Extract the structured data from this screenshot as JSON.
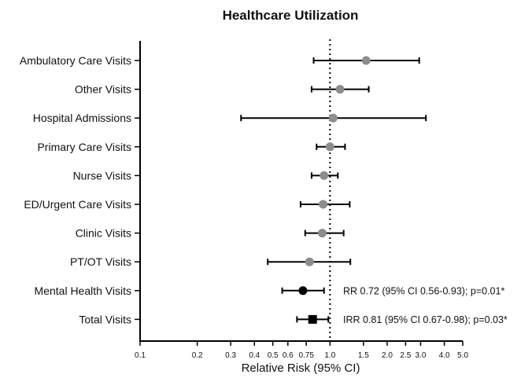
{
  "chart_data": {
    "type": "forest",
    "title": "Healthcare Utilization",
    "xlabel": "Relative Risk (95% CI)",
    "x_scale": "log",
    "xlim": [
      0.1,
      5.0
    ],
    "reference_line": 1.0,
    "x_ticks": [
      "0.1",
      "0.2",
      "0.3",
      "0.4",
      "0.5",
      "0.6",
      "0.75",
      "1.0",
      "1.5",
      "2.0",
      "2.5",
      "3.0",
      "4.0",
      "5.0"
    ],
    "colors": {
      "gray_marker": "#8c8c8c",
      "black_marker": "#000000",
      "line": "#000000"
    },
    "rows": [
      {
        "label": "Ambulatory Care Visits",
        "estimate": 1.55,
        "lower": 0.82,
        "upper": 2.95,
        "marker": "circle",
        "color": "#8c8c8c",
        "annotation": ""
      },
      {
        "label": "Other Visits",
        "estimate": 1.13,
        "lower": 0.8,
        "upper": 1.6,
        "marker": "circle",
        "color": "#8c8c8c",
        "annotation": ""
      },
      {
        "label": "Hospital Admissions",
        "estimate": 1.04,
        "lower": 0.34,
        "upper": 3.2,
        "marker": "circle",
        "color": "#8c8c8c",
        "annotation": ""
      },
      {
        "label": "Primary Care Visits",
        "estimate": 1.0,
        "lower": 0.85,
        "upper": 1.2,
        "marker": "circle",
        "color": "#8c8c8c",
        "annotation": ""
      },
      {
        "label": "Nurse Visits",
        "estimate": 0.93,
        "lower": 0.8,
        "upper": 1.1,
        "marker": "circle",
        "color": "#8c8c8c",
        "annotation": ""
      },
      {
        "label": "ED/Urgent Care Visits",
        "estimate": 0.92,
        "lower": 0.7,
        "upper": 1.27,
        "marker": "circle",
        "color": "#8c8c8c",
        "annotation": ""
      },
      {
        "label": "Clinic Visits",
        "estimate": 0.91,
        "lower": 0.74,
        "upper": 1.18,
        "marker": "circle",
        "color": "#8c8c8c",
        "annotation": ""
      },
      {
        "label": "PT/OT Visits",
        "estimate": 0.78,
        "lower": 0.47,
        "upper": 1.28,
        "marker": "circle",
        "color": "#8c8c8c",
        "annotation": ""
      },
      {
        "label": "Mental Health Visits",
        "estimate": 0.72,
        "lower": 0.56,
        "upper": 0.93,
        "marker": "circle",
        "color": "#000000",
        "annotation": "RR 0.72 (95% CI 0.56-0.93); p=0.01*"
      },
      {
        "label": "Total Visits",
        "estimate": 0.81,
        "lower": 0.67,
        "upper": 0.98,
        "marker": "square",
        "color": "#000000",
        "annotation": "IRR 0.81 (95% CI 0.67-0.98); p=0.03*"
      }
    ]
  }
}
